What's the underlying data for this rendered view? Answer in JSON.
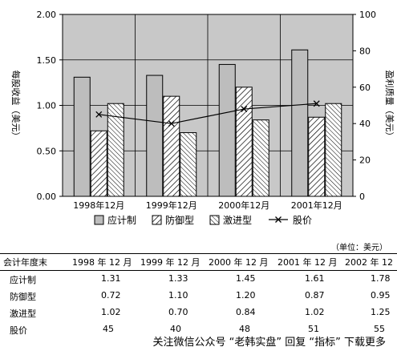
{
  "chart_data": {
    "type": "bar",
    "categories": [
      "1998年12月",
      "1999年12月",
      "2000年12月",
      "2001年12月"
    ],
    "series": [
      {
        "name": "应计制",
        "values": [
          1.31,
          1.33,
          1.45,
          1.61
        ],
        "pattern": "solid-gray"
      },
      {
        "name": "防御型",
        "values": [
          0.72,
          1.1,
          1.2,
          0.87
        ],
        "pattern": "hatch-diagonal"
      },
      {
        "name": "激进型",
        "values": [
          1.02,
          0.7,
          0.84,
          1.02
        ],
        "pattern": "hatch-diagonal-reverse"
      },
      {
        "name": "股价",
        "values": [
          45,
          40,
          48,
          51
        ],
        "type": "line",
        "axis": "right",
        "marker": "x"
      }
    ],
    "yleft": {
      "label": "每股收益（美元）",
      "ylim": [
        0,
        2
      ],
      "ticks": [
        "0.00",
        "0.50",
        "1.00",
        "1.50",
        "2.00"
      ]
    },
    "yright": {
      "label": "盈利质量（美元）",
      "ylim": [
        0,
        100
      ],
      "ticks": [
        "0",
        "20",
        "40",
        "60",
        "80",
        "100"
      ]
    },
    "grid": true,
    "legend": "bottom",
    "colors": {
      "plot_bg": "#c8c8c8",
      "bar_fill": "#bdbdbd",
      "hatch_bg": "#ffffff"
    }
  },
  "table": {
    "unit_note": "（单位：美元）",
    "headers": [
      "会计年度末",
      "1998 年 12 月",
      "1999 年 12 月",
      "2000 年 12 月",
      "2001 年 12 月",
      "2002 年 12"
    ],
    "rows": [
      {
        "label": "应计制",
        "values": [
          "1.31",
          "1.33",
          "1.45",
          "1.61",
          "1.78"
        ]
      },
      {
        "label": "防御型",
        "values": [
          "0.72",
          "1.10",
          "1.20",
          "0.87",
          "0.95"
        ]
      },
      {
        "label": "激进型",
        "values": [
          "1.02",
          "0.70",
          "0.84",
          "1.02",
          "1.25"
        ]
      },
      {
        "label": "股价",
        "values": [
          "45",
          "40",
          "48",
          "51",
          "55"
        ]
      }
    ]
  },
  "watermark": "关注微信公众号 “老韩实盘” 回复 “指标” 下载更多"
}
